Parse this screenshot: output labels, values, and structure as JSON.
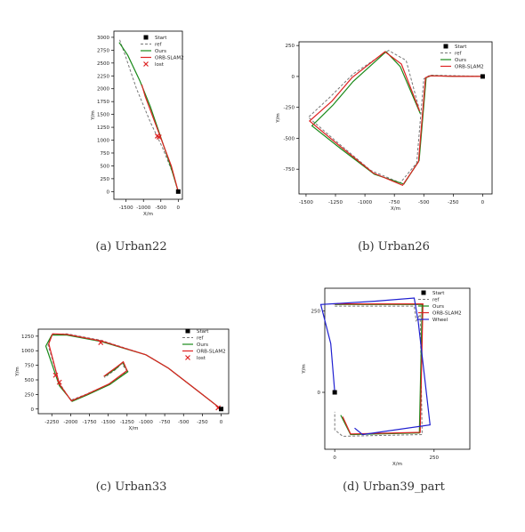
{
  "captions": {
    "a": "(a) Urban22",
    "b": "(b) Urban26",
    "c": "(c) Urban33",
    "d": "(d) Urban39_part"
  },
  "colors": {
    "ref": "#777777",
    "ours": "#1a8a1a",
    "orb": "#dd2222",
    "wheel": "#1f1fd0",
    "start": "#000000",
    "lost": "#dd2222"
  },
  "chart_data": [
    {
      "type": "line",
      "caption": "(a) Urban22",
      "xlabel": "X/m",
      "ylabel": "Y/m",
      "xlim": [
        -1850,
        120
      ],
      "ylim": [
        -150,
        3120
      ],
      "xticks": [
        -1500,
        -1000,
        -500,
        0
      ],
      "xtick_labels": [
        "-1500",
        "-1000",
        "-500",
        "0"
      ],
      "yticks": [
        0,
        250,
        500,
        750,
        1000,
        1250,
        1500,
        1750,
        2000,
        2250,
        2500,
        2750,
        3000
      ],
      "ytick_labels": [
        "0",
        "250",
        "500",
        "750",
        "1000",
        "1250",
        "1500",
        "1750",
        "2000",
        "2250",
        "2500",
        "2750",
        "3000"
      ],
      "legend": [
        {
          "key": "start",
          "label": "Start"
        },
        {
          "key": "ref",
          "label": "ref"
        },
        {
          "key": "ours",
          "label": "Ours"
        },
        {
          "key": "orb",
          "label": "ORB-SLAM2"
        },
        {
          "key": "lost",
          "label": "lost"
        }
      ],
      "legend_loc": "upper right",
      "start": [
        0,
        0
      ],
      "series": [
        {
          "key": "ref",
          "points": [
            [
              0,
              0
            ],
            [
              -150,
              350
            ],
            [
              -450,
              850
            ],
            [
              -800,
              1350
            ],
            [
              -1200,
              2000
            ],
            [
              -1550,
              2700
            ],
            [
              -1700,
              2980
            ]
          ]
        },
        {
          "key": "ours",
          "points": [
            [
              0,
              0
            ],
            [
              -200,
              450
            ],
            [
              -500,
              1050
            ],
            [
              -800,
              1650
            ],
            [
              -1100,
              2150
            ],
            [
              -1450,
              2650
            ],
            [
              -1700,
              2900
            ]
          ]
        },
        {
          "key": "orb",
          "points": [
            [
              0,
              0
            ],
            [
              -200,
              500
            ],
            [
              -450,
              950
            ],
            [
              -700,
              1400
            ],
            [
              -950,
              1850
            ],
            [
              -1050,
              2080
            ]
          ]
        }
      ],
      "lost": [
        [
          -600,
          1080
        ],
        [
          -550,
          1060
        ]
      ]
    },
    {
      "type": "line",
      "caption": "(b) Urban26",
      "xlabel": "X/m",
      "ylabel": "Y/m",
      "xlim": [
        -1560,
        80
      ],
      "ylim": [
        -950,
        280
      ],
      "xticks": [
        -1500,
        -1250,
        -1000,
        -750,
        -500,
        -250,
        0
      ],
      "xtick_labels": [
        "-1500",
        "-1250",
        "-1000",
        "-750",
        "-500",
        "-250",
        "0"
      ],
      "yticks": [
        250,
        0,
        -250,
        -500,
        -750
      ],
      "ytick_labels": [
        "250",
        "0",
        "-250",
        "-500",
        "-750"
      ],
      "legend": [
        {
          "key": "start",
          "label": "Start"
        },
        {
          "key": "ref",
          "label": "ref"
        },
        {
          "key": "ours",
          "label": "Ours"
        },
        {
          "key": "orb",
          "label": "ORB-SLAM2"
        }
      ],
      "legend_loc": "upper right",
      "start": [
        0,
        0
      ],
      "series": [
        {
          "key": "ref",
          "points": [
            [
              0,
              0
            ],
            [
              -200,
              5
            ],
            [
              -450,
              10
            ],
            [
              -500,
              -20
            ],
            [
              -560,
              -700
            ],
            [
              -700,
              -860
            ],
            [
              -950,
              -760
            ],
            [
              -1250,
              -520
            ],
            [
              -1480,
              -330
            ],
            [
              -1300,
              -170
            ],
            [
              -1100,
              20
            ],
            [
              -800,
              210
            ],
            [
              -650,
              130
            ],
            [
              -540,
              -260
            ]
          ]
        },
        {
          "key": "ours",
          "points": [
            [
              0,
              0
            ],
            [
              -200,
              0
            ],
            [
              -440,
              5
            ],
            [
              -480,
              -10
            ],
            [
              -540,
              -680
            ],
            [
              -670,
              -870
            ],
            [
              -920,
              -790
            ],
            [
              -1210,
              -580
            ],
            [
              -1450,
              -400
            ],
            [
              -1270,
              -230
            ],
            [
              -1100,
              -40
            ],
            [
              -820,
              200
            ],
            [
              -700,
              80
            ],
            [
              -530,
              -300
            ]
          ]
        },
        {
          "key": "orb",
          "points": [
            [
              0,
              0
            ],
            [
              -200,
              0
            ],
            [
              -445,
              5
            ],
            [
              -485,
              -10
            ],
            [
              -545,
              -690
            ],
            [
              -680,
              -880
            ],
            [
              -930,
              -780
            ],
            [
              -1230,
              -550
            ],
            [
              -1470,
              -360
            ],
            [
              -1280,
              -200
            ],
            [
              -1110,
              -10
            ],
            [
              -830,
              200
            ],
            [
              -690,
              100
            ],
            [
              -535,
              -280
            ]
          ]
        }
      ]
    },
    {
      "type": "line",
      "caption": "(c) Urban33",
      "xlabel": "X/m",
      "ylabel": "Y/m",
      "xlim": [
        -2430,
        100
      ],
      "ylim": [
        -80,
        1370
      ],
      "xticks": [
        -2250,
        -2000,
        -1750,
        -1500,
        -1250,
        -1000,
        -750,
        -500,
        -250,
        0
      ],
      "xtick_labels": [
        "-2250",
        "-2000",
        "-1750",
        "-1500",
        "-1250",
        "-1000",
        "-750",
        "-500",
        "-250",
        "0"
      ],
      "yticks": [
        0,
        250,
        500,
        750,
        1000,
        1250
      ],
      "ytick_labels": [
        "0",
        "250",
        "500",
        "750",
        "1000",
        "1250"
      ],
      "legend": [
        {
          "key": "start",
          "label": "Start"
        },
        {
          "key": "ref",
          "label": "ref"
        },
        {
          "key": "ours",
          "label": "Ours"
        },
        {
          "key": "orb",
          "label": "ORB-SLAM2"
        },
        {
          "key": "lost",
          "label": "lost"
        }
      ],
      "legend_loc": "upper right",
      "start": [
        0,
        0
      ],
      "series": [
        {
          "key": "ref",
          "points": [
            [
              0,
              0
            ],
            [
              -300,
              300
            ],
            [
              -700,
              700
            ],
            [
              -1000,
              930
            ],
            [
              -1600,
              1180
            ],
            [
              -2050,
              1290
            ],
            [
              -2250,
              1280
            ],
            [
              -2300,
              1100
            ],
            [
              -2150,
              450
            ],
            [
              -2000,
              150
            ],
            [
              -1800,
              250
            ],
            [
              -1500,
              420
            ],
            [
              -1250,
              650
            ],
            [
              -1320,
              780
            ],
            [
              -1400,
              680
            ],
            [
              -1550,
              540
            ]
          ]
        },
        {
          "key": "ours",
          "points": [
            [
              0,
              0
            ],
            [
              -300,
              300
            ],
            [
              -700,
              700
            ],
            [
              -1000,
              930
            ],
            [
              -1600,
              1160
            ],
            [
              -2050,
              1270
            ],
            [
              -2250,
              1270
            ],
            [
              -2330,
              1080
            ],
            [
              -2150,
              400
            ],
            [
              -1980,
              130
            ],
            [
              -1780,
              240
            ],
            [
              -1480,
              420
            ],
            [
              -1240,
              640
            ],
            [
              -1310,
              800
            ],
            [
              -1390,
              700
            ],
            [
              -1550,
              560
            ]
          ]
        },
        {
          "key": "orb",
          "points": [
            [
              0,
              0
            ],
            [
              -300,
              300
            ],
            [
              -700,
              700
            ],
            [
              -1000,
              930
            ],
            [
              -1600,
              1170
            ],
            [
              -2050,
              1280
            ],
            [
              -2240,
              1290
            ],
            [
              -2290,
              1120
            ],
            [
              -2150,
              430
            ],
            [
              -1990,
              140
            ],
            [
              -1790,
              250
            ],
            [
              -1490,
              430
            ],
            [
              -1250,
              660
            ],
            [
              -1300,
              810
            ],
            [
              -1390,
              720
            ],
            [
              -1560,
              560
            ]
          ]
        }
      ],
      "lost": [
        [
          -1600,
          1140
        ],
        [
          -2200,
          580
        ],
        [
          -2150,
          460
        ],
        [
          -40,
          20
        ]
      ]
    },
    {
      "type": "line",
      "caption": "(d) Urban39_part",
      "xlabel": "X/m",
      "ylabel": "Y/m",
      "xlim": [
        -25,
        340
      ],
      "ylim": [
        -175,
        320
      ],
      "xticks": [
        0,
        250
      ],
      "xtick_labels": [
        "0",
        "250"
      ],
      "yticks": [
        250,
        0
      ],
      "ytick_labels": [
        "250",
        "0"
      ],
      "legend": [
        {
          "key": "start",
          "label": "Start"
        },
        {
          "key": "ref",
          "label": "ref"
        },
        {
          "key": "ours",
          "label": "Ours"
        },
        {
          "key": "orb",
          "label": "ORB-SLAM2"
        },
        {
          "key": "wheel",
          "label": "Wheel"
        }
      ],
      "legend_loc": "upper right",
      "start": [
        0,
        0
      ],
      "series": [
        {
          "key": "ref",
          "points": [
            [
              0,
              265
            ],
            [
              200,
              265
            ],
            [
              205,
              220
            ],
            [
              215,
              240
            ],
            [
              220,
              -130
            ],
            [
              20,
              -135
            ],
            [
              0,
              -115
            ],
            [
              0,
              -60
            ]
          ]
        },
        {
          "key": "ours",
          "points": [
            [
              0,
              270
            ],
            [
              220,
              270
            ],
            [
              213,
              -125
            ],
            [
              40,
              -130
            ],
            [
              15,
              -70
            ]
          ]
        },
        {
          "key": "orb",
          "points": [
            [
              -5,
              272
            ],
            [
              222,
              272
            ],
            [
              215,
              -123
            ],
            [
              40,
              -128
            ],
            [
              20,
              -75
            ]
          ]
        },
        {
          "key": "wheel",
          "points": [
            [
              0,
              0
            ],
            [
              -10,
              150
            ],
            [
              -35,
              270
            ],
            [
              100,
              280
            ],
            [
              200,
              290
            ],
            [
              210,
              220
            ],
            [
              240,
              -100
            ],
            [
              70,
              -130
            ],
            [
              50,
              -110
            ]
          ]
        }
      ]
    }
  ]
}
